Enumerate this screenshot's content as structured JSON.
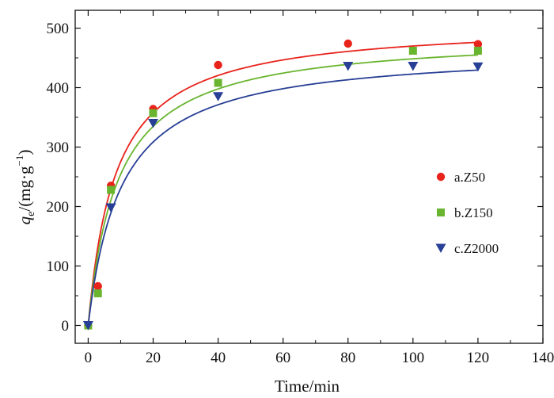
{
  "chart_data": {
    "type": "scatter",
    "xlabel": "Time/min",
    "ylabel": {
      "prefix": "q",
      "subscript": "e",
      "unit_base": "/(mg·g",
      "unit_sup": "−1",
      "unit_close": ")"
    },
    "xlim": [
      -4,
      140
    ],
    "ylim": [
      -30,
      530
    ],
    "xticks": [
      0,
      20,
      40,
      60,
      80,
      100,
      120,
      140
    ],
    "yticks": [
      0,
      100,
      200,
      300,
      400,
      500
    ],
    "xticks_minor": [
      10,
      30,
      50,
      70,
      90,
      110,
      130
    ],
    "yticks_minor": [
      50,
      150,
      250,
      350,
      450
    ],
    "grid": false,
    "legend_position": "right-middle",
    "series": [
      {
        "name": "a.Z50",
        "color": "#e8231c",
        "marker": "circle",
        "x": [
          0,
          3,
          7,
          20,
          40,
          80,
          120
        ],
        "y": [
          0,
          66,
          235,
          364,
          438,
          474,
          473
        ],
        "fit_curve": {
          "model": "pseudo-second-order",
          "qe": 510,
          "k2": 0.00023
        }
      },
      {
        "name": "b.Z150",
        "color": "#6ab52f",
        "marker": "square",
        "x": [
          0,
          3,
          7,
          20,
          40,
          100,
          120
        ],
        "y": [
          0,
          54,
          228,
          357,
          408,
          462,
          462
        ],
        "fit_curve": {
          "model": "pseudo-second-order",
          "qe": 490,
          "k2": 0.00022
        }
      },
      {
        "name": "c.Z2000",
        "color": "#283f96",
        "marker": "triangle-down",
        "x": [
          0,
          7,
          20,
          40,
          80,
          100,
          120
        ],
        "y": [
          0,
          198,
          340,
          385,
          436,
          436,
          435
        ],
        "fit_curve": {
          "model": "pseudo-second-order",
          "qe": 466,
          "k2": 0.00021
        }
      }
    ]
  }
}
